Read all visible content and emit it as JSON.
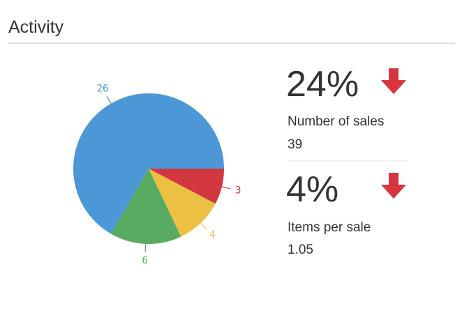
{
  "header": {
    "title": "Activity"
  },
  "chart_data": {
    "type": "pie",
    "values": [
      3,
      4,
      6,
      26
    ],
    "colors": [
      "#d2363f",
      "#ecc043",
      "#59ab62",
      "#4c97d5"
    ],
    "start_angle": 0,
    "direction": "clockwise"
  },
  "stats": [
    {
      "value": "24%",
      "label": "Number of sales",
      "count": "39"
    },
    {
      "value": "4%",
      "label": "Items per sale",
      "count": "1.05"
    }
  ]
}
